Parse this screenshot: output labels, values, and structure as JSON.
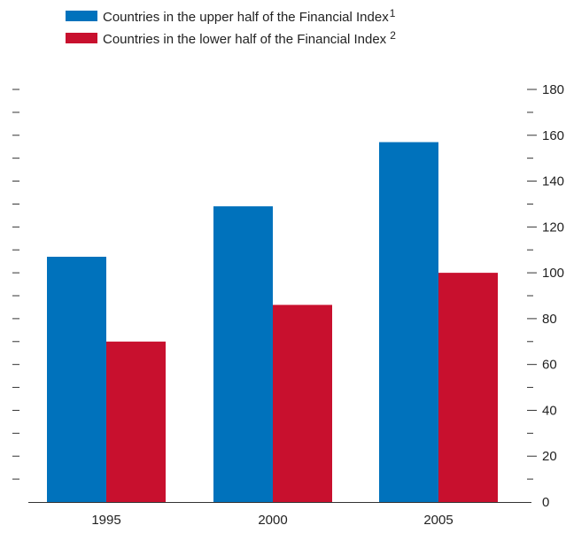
{
  "chart_data": {
    "type": "bar",
    "title": "",
    "xlabel": "",
    "ylabel": "",
    "categories": [
      "1995",
      "2000",
      "2005"
    ],
    "series": [
      {
        "name": "Countries in the upper half of the Financial Index",
        "footnote": "1",
        "color": "#0072bc",
        "values": [
          107,
          129,
          157
        ]
      },
      {
        "name": "Countries in the lower half of the Financial Index",
        "footnote": "2",
        "color": "#c8102e",
        "values": [
          70,
          86,
          100
        ]
      }
    ],
    "ylim": [
      0,
      180
    ],
    "yticks": [
      0,
      20,
      40,
      60,
      80,
      100,
      120,
      140,
      160,
      180
    ],
    "minor_tick_step": 10,
    "y_axis_labels_side": "right",
    "grid": false,
    "legend_position": "top-left"
  }
}
